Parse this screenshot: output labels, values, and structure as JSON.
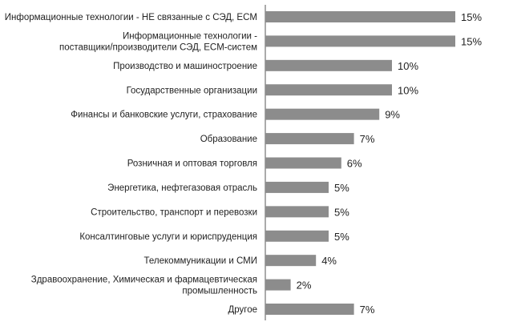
{
  "chart_data": {
    "type": "bar",
    "orientation": "horizontal",
    "title": "",
    "xlabel": "",
    "ylabel": "",
    "xlim": [
      0,
      15
    ],
    "grid": false,
    "legend": "none",
    "bar_color": "#8c8c8c",
    "categories": [
      "Информационные технологии - НЕ связанные с СЭД, ECM",
      "Информационные технологии - поставщики/производители СЭД, ECM-систем",
      "Производство и машиностроение",
      "Государственные организации",
      "Финансы и банковские услуги, страхование",
      "Образование",
      "Розничная и оптовая торговля",
      "Энергетика, нефтегазовая отрасль",
      "Строительство, транспорт и перевозки",
      "Консалтинговые услуги и юриспруденция",
      "Телекоммуникации и СМИ",
      "Здравоохранение, Химическая и фармацевтическая промышленность",
      "Другое"
    ],
    "category_lines": [
      [
        "Информационные технологии - НЕ связанные с СЭД, ECM"
      ],
      [
        "Информационные технологии -",
        "поставщики/производители СЭД, ECM-систем"
      ],
      [
        "Производство и машиностроение"
      ],
      [
        "Государственные организации"
      ],
      [
        "Финансы и банковские услуги, страхование"
      ],
      [
        "Образование"
      ],
      [
        "Розничная и оптовая торговля"
      ],
      [
        "Энергетика, нефтегазовая отрасль"
      ],
      [
        "Строительство, транспорт и перевозки"
      ],
      [
        "Консалтинговые услуги и юриспруденция"
      ],
      [
        "Телекоммуникации и СМИ"
      ],
      [
        "Здравоохранение, Химическая и фармацевтическая",
        "промышленность"
      ],
      [
        "Другое"
      ]
    ],
    "values": [
      15,
      15,
      10,
      10,
      9,
      7,
      6,
      5,
      5,
      5,
      4,
      2,
      7
    ],
    "value_labels": [
      "15%",
      "15%",
      "10%",
      "10%",
      "9%",
      "7%",
      "6%",
      "5%",
      "5%",
      "5%",
      "4%",
      "2%",
      "7%"
    ]
  }
}
